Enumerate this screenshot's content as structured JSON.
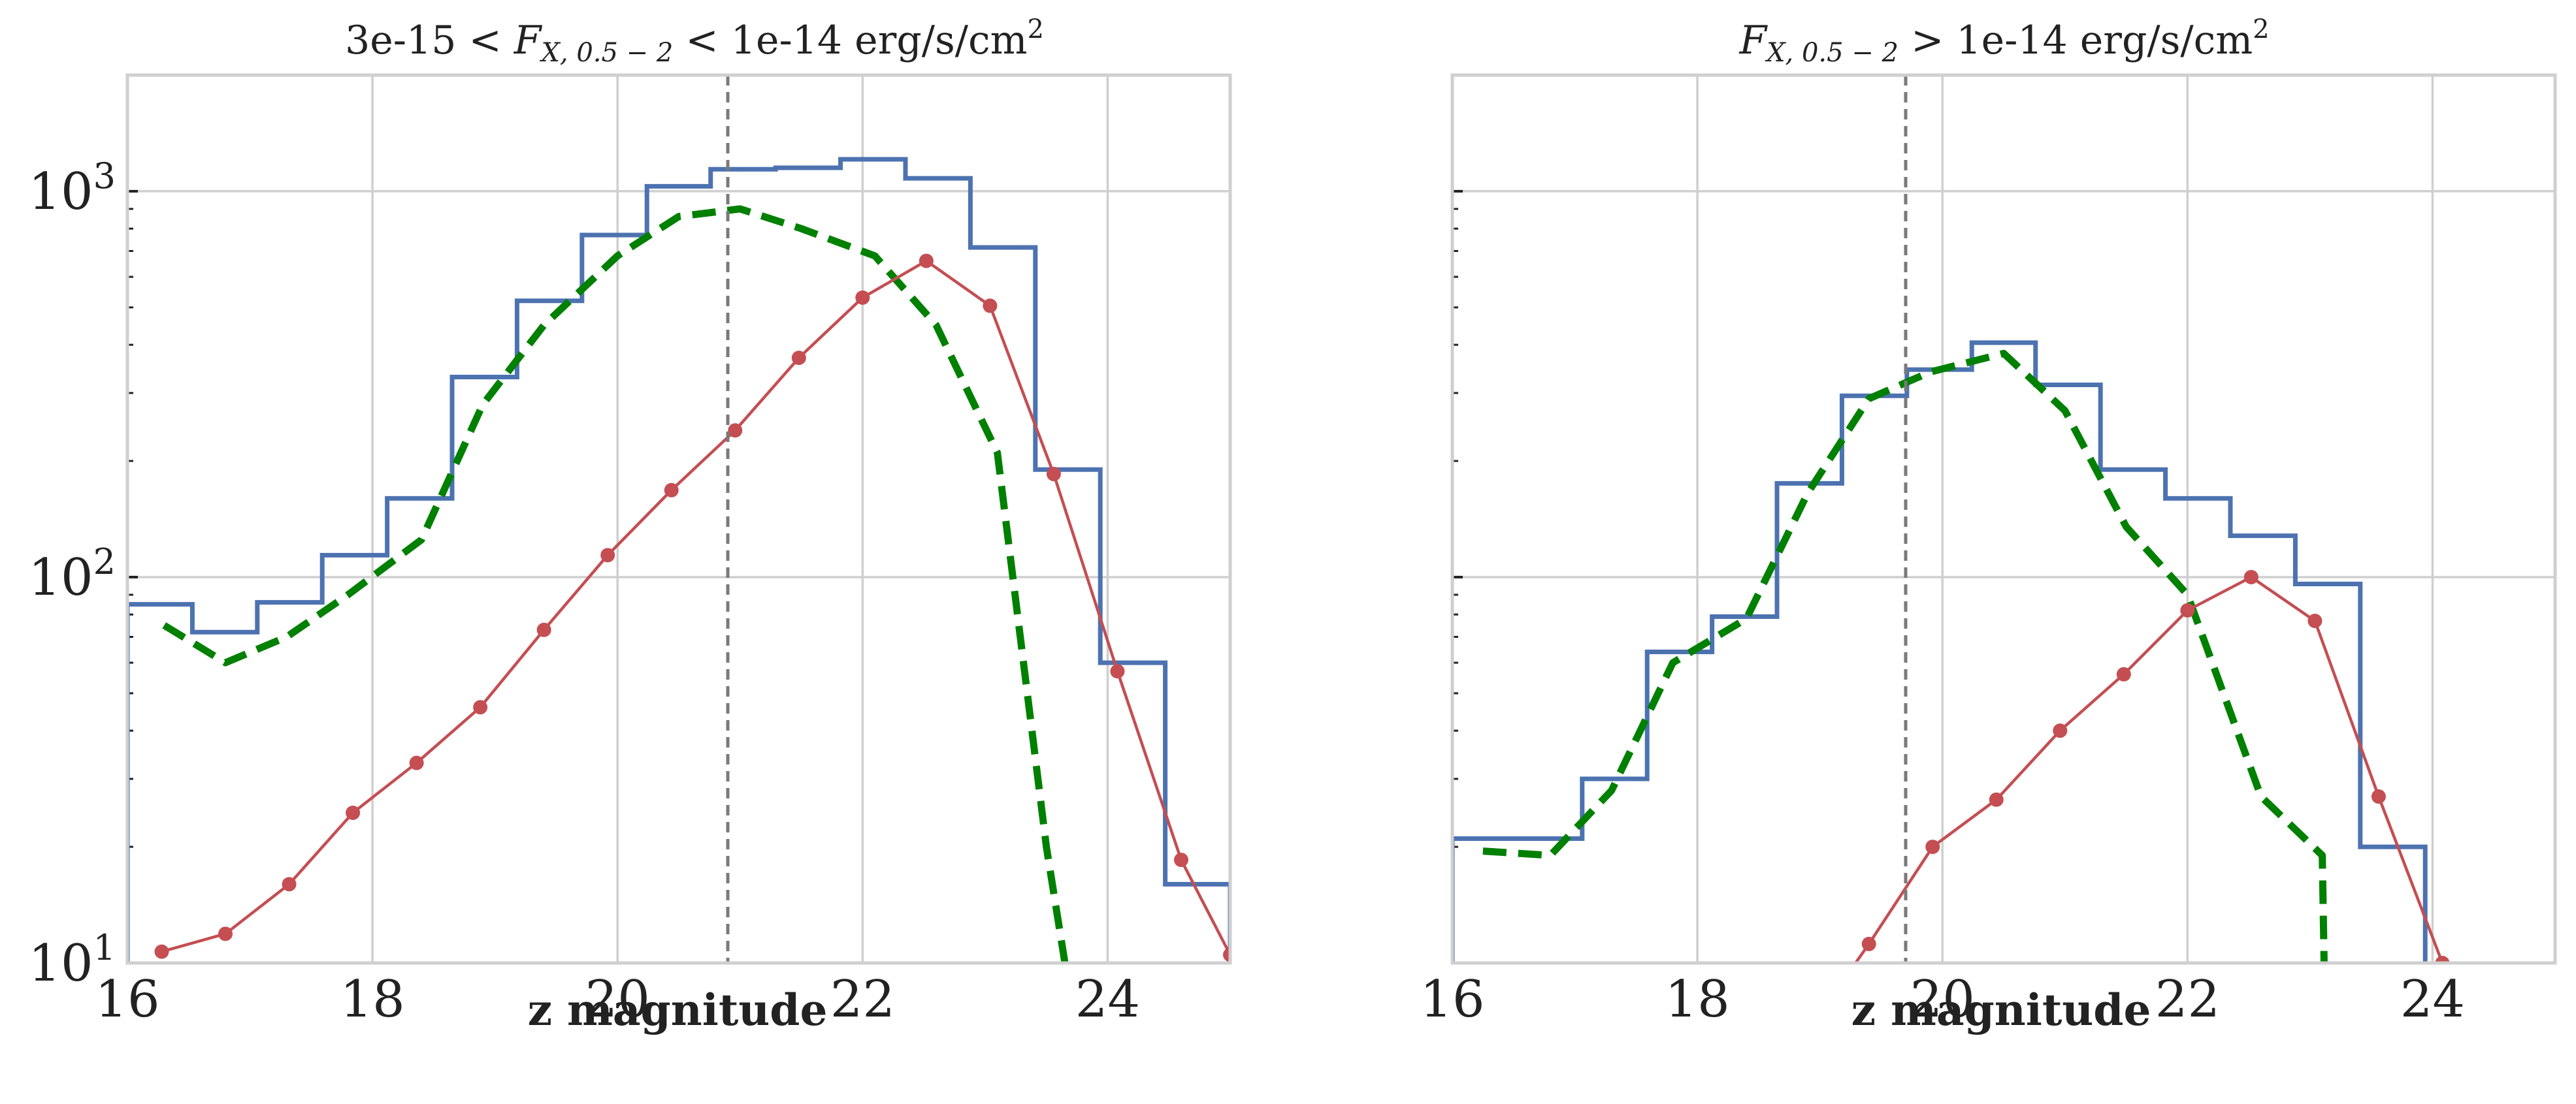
{
  "colors": {
    "hist": "#4c72b0",
    "dashed_model": "#008000",
    "dotted_model": "#c44e52",
    "vline": "#7a7a7a",
    "grid": "#cfcfcf"
  },
  "chart_data": [
    {
      "type": "line",
      "title_parts": [
        "3e-15 < ",
        "F",
        "X, 0.5 − 2",
        " < 1e-14 erg/s/cm",
        "2"
      ],
      "xlabel": "z magnitude",
      "ylabel": "",
      "xlim": [
        16,
        25
      ],
      "ylim": [
        10,
        2000
      ],
      "yscale": "log",
      "grid": true,
      "x_ticks": [
        "16",
        "18",
        "20",
        "22",
        "24"
      ],
      "y_ticks": [
        {
          "value": 10,
          "base": "10",
          "exp": "1"
        },
        {
          "value": 100,
          "base": "10",
          "exp": "2"
        },
        {
          "value": 1000,
          "base": "10",
          "exp": "3"
        }
      ],
      "vline": 20.9,
      "histogram": {
        "edges": [
          16.0,
          16.53,
          17.06,
          17.59,
          18.12,
          18.65,
          19.18,
          19.71,
          20.24,
          20.76,
          21.29,
          21.82,
          22.35,
          22.88,
          23.41,
          23.94,
          24.47,
          25.0
        ],
        "counts": [
          85,
          72,
          86,
          114,
          160,
          330,
          520,
          770,
          1030,
          1140,
          1150,
          1210,
          1080,
          715,
          190,
          60,
          16
        ]
      },
      "series": [
        {
          "style": "dashed",
          "x": [
            16.3,
            16.8,
            17.3,
            17.8,
            18.4,
            18.9,
            19.4,
            20.0,
            20.5,
            21.0,
            21.5,
            22.1,
            22.6,
            23.1,
            23.5,
            23.7
          ],
          "y": [
            75,
            60,
            70,
            90,
            125,
            280,
            450,
            680,
            860,
            900,
            800,
            680,
            450,
            210,
            20,
            8
          ]
        },
        {
          "style": "line-markers",
          "x": [
            16.28,
            16.8,
            17.32,
            17.84,
            18.36,
            18.88,
            19.4,
            19.92,
            20.44,
            20.96,
            21.48,
            22.0,
            22.52,
            23.04,
            23.56,
            24.08,
            24.6,
            25.0
          ],
          "y": [
            10.7,
            11.9,
            16,
            24.5,
            33,
            46,
            73,
            114,
            168,
            240,
            370,
            530,
            660,
            505,
            185,
            57,
            18.5,
            10.5
          ]
        }
      ]
    },
    {
      "type": "line",
      "title_parts": [
        "",
        "F",
        "X, 0.5 − 2",
        " > 1e-14 erg/s/cm",
        "2"
      ],
      "xlabel": "z magnitude",
      "ylabel": "",
      "xlim": [
        16,
        25
      ],
      "ylim": [
        10,
        2000
      ],
      "yscale": "log",
      "grid": true,
      "x_ticks": [
        "16",
        "18",
        "20",
        "22",
        "24"
      ],
      "y_ticks": [],
      "vline": 19.7,
      "histogram": {
        "edges": [
          16.0,
          16.53,
          17.06,
          17.59,
          18.12,
          18.65,
          19.18,
          19.71,
          20.24,
          20.76,
          21.29,
          21.82,
          22.35,
          22.88,
          23.41,
          23.94
        ],
        "counts": [
          21,
          21,
          30,
          64,
          79,
          175,
          295,
          345,
          405,
          315,
          190,
          160,
          128,
          96,
          20
        ]
      },
      "series": [
        {
          "style": "dashed",
          "x": [
            16.25,
            16.8,
            17.3,
            17.8,
            18.4,
            18.9,
            19.4,
            19.9,
            20.5,
            21.0,
            21.5,
            22.0,
            22.6,
            23.1,
            23.12
          ],
          "y": [
            19.5,
            19,
            28,
            60,
            78,
            165,
            290,
            340,
            380,
            270,
            135,
            90,
            27,
            19,
            8
          ]
        },
        {
          "style": "line-markers",
          "x": [
            18.8,
            19.4,
            19.92,
            20.44,
            20.96,
            21.48,
            22.0,
            22.52,
            23.04,
            23.56,
            24.08
          ],
          "y": [
            6,
            11.2,
            20,
            26.5,
            40,
            56,
            82,
            100,
            77,
            27,
            10
          ]
        }
      ]
    }
  ]
}
